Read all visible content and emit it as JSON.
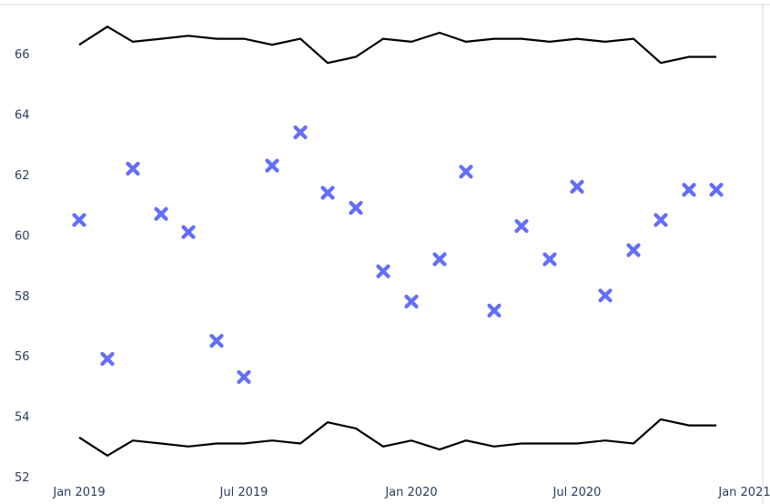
{
  "chart_data": {
    "type": "scatter",
    "title": "",
    "xlabel": "",
    "ylabel": "",
    "xlim": [
      "2019-01-01",
      "2021-01-01"
    ],
    "ylim": [
      52,
      67.5
    ],
    "grid": false,
    "legend": "none",
    "x_ticks": [
      "Jan 2019",
      "Jul 2019",
      "Jan 2020",
      "Jul 2020",
      "Jan 2021"
    ],
    "x_tick_dates": [
      "2019-01-01",
      "2019-07-01",
      "2020-01-01",
      "2020-07-01",
      "2021-01-01"
    ],
    "y_ticks": [
      52,
      54,
      56,
      58,
      60,
      62,
      64,
      66
    ],
    "series": [
      {
        "mode": "markers",
        "marker": "x",
        "color": "#636efa",
        "x": [
          "2019-01-01",
          "2019-02-01",
          "2019-03-01",
          "2019-04-01",
          "2019-05-01",
          "2019-06-01",
          "2019-07-01",
          "2019-08-01",
          "2019-09-01",
          "2019-10-01",
          "2019-11-01",
          "2019-12-01",
          "2020-01-01",
          "2020-02-01",
          "2020-03-01",
          "2020-04-01",
          "2020-05-01",
          "2020-06-01",
          "2020-07-01",
          "2020-08-01",
          "2020-09-01",
          "2020-10-01",
          "2020-11-01",
          "2020-12-01"
        ],
        "y": [
          60.5,
          55.9,
          62.2,
          60.7,
          60.1,
          56.5,
          55.3,
          62.3,
          63.4,
          61.4,
          60.9,
          58.8,
          57.8,
          59.2,
          62.1,
          57.5,
          60.3,
          59.2,
          61.6,
          58.0,
          59.5,
          60.5,
          61.5,
          61.5
        ]
      },
      {
        "mode": "lines",
        "color": "#000000",
        "x": [
          "2019-01-01",
          "2019-02-01",
          "2019-03-01",
          "2019-04-01",
          "2019-05-01",
          "2019-06-01",
          "2019-07-01",
          "2019-08-01",
          "2019-09-01",
          "2019-10-01",
          "2019-11-01",
          "2019-12-01",
          "2020-01-01",
          "2020-02-01",
          "2020-03-01",
          "2020-04-01",
          "2020-05-01",
          "2020-06-01",
          "2020-07-01",
          "2020-08-01",
          "2020-09-01",
          "2020-10-01",
          "2020-11-01",
          "2020-12-01"
        ],
        "y": [
          66.3,
          66.9,
          66.4,
          66.5,
          66.6,
          66.5,
          66.5,
          66.3,
          66.5,
          65.7,
          65.9,
          66.5,
          66.4,
          66.7,
          66.4,
          66.5,
          66.5,
          66.4,
          66.5,
          66.4,
          66.5,
          65.7,
          65.9,
          65.9
        ]
      },
      {
        "mode": "lines",
        "color": "#000000",
        "x": [
          "2019-01-01",
          "2019-02-01",
          "2019-03-01",
          "2019-04-01",
          "2019-05-01",
          "2019-06-01",
          "2019-07-01",
          "2019-08-01",
          "2019-09-01",
          "2019-10-01",
          "2019-11-01",
          "2019-12-01",
          "2020-01-01",
          "2020-02-01",
          "2020-03-01",
          "2020-04-01",
          "2020-05-01",
          "2020-06-01",
          "2020-07-01",
          "2020-08-01",
          "2020-09-01",
          "2020-10-01",
          "2020-11-01",
          "2020-12-01"
        ],
        "y": [
          53.3,
          52.7,
          53.2,
          53.1,
          53.0,
          53.1,
          53.1,
          53.2,
          53.1,
          53.8,
          53.6,
          53.0,
          53.2,
          52.9,
          53.2,
          53.0,
          53.1,
          53.1,
          53.1,
          53.2,
          53.1,
          53.9,
          53.7,
          53.7
        ]
      }
    ]
  }
}
